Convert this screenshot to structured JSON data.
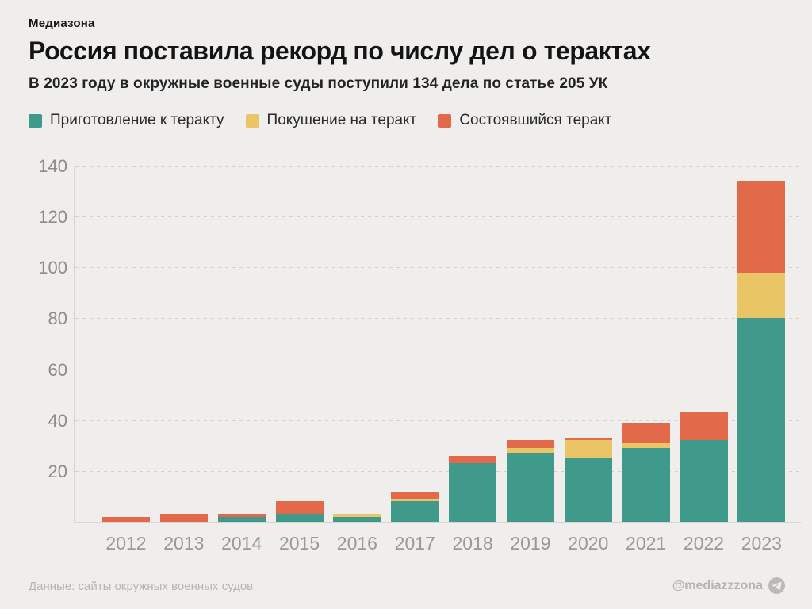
{
  "page": {
    "brand": "Медиазона",
    "title": "Россия поставила рекорд по числу дел о терактах",
    "subtitle": "В 2023 году в окружные военные суды поступили 134 дела по статье 205 УК",
    "footer": {
      "source": "Данные: сайты окружных военных судов",
      "handle": "@mediazzzona",
      "handle_icon": "telegram-icon"
    },
    "colors": {
      "background": "#efeeec",
      "title_text": "#141414",
      "axis_line": "#d7d5d2",
      "gridline": "#d3d1ce",
      "ytick_text": "#8e8c89",
      "xtick_text": "#9b9996",
      "footer_text": "#b7b5b1"
    }
  },
  "chart_data": {
    "type": "bar",
    "stacked": true,
    "title": "Россия поставила рекорд по числу дел о терактах",
    "subtitle": "В 2023 году в окружные военные суды поступили 134 дела по статье 205 УК",
    "categories": [
      "2012",
      "2013",
      "2014",
      "2015",
      "2016",
      "2017",
      "2018",
      "2019",
      "2020",
      "2021",
      "2022",
      "2023"
    ],
    "series": [
      {
        "name": "Приготовление к теракту",
        "color": "#3f9a8b",
        "values": [
          0,
          0,
          2,
          3,
          2,
          8,
          23,
          27,
          25,
          29,
          32,
          80
        ]
      },
      {
        "name": "Покушение на теракт",
        "color": "#e9c566",
        "values": [
          0,
          0,
          0,
          0,
          1,
          1,
          0,
          2,
          7,
          2,
          0,
          18
        ]
      },
      {
        "name": "Состоявшийся теракт",
        "color": "#e26a4b",
        "values": [
          2,
          3,
          1,
          5,
          0,
          3,
          3,
          3,
          1,
          8,
          11,
          36
        ]
      }
    ],
    "totals": [
      2,
      3,
      3,
      8,
      3,
      12,
      26,
      32,
      33,
      39,
      43,
      134
    ],
    "xlabel": "",
    "ylabel": "",
    "ylim": [
      0,
      140
    ],
    "yticks": [
      20,
      40,
      60,
      80,
      100,
      120,
      140
    ],
    "grid": "horizontal-dashed",
    "legend_position": "top"
  }
}
